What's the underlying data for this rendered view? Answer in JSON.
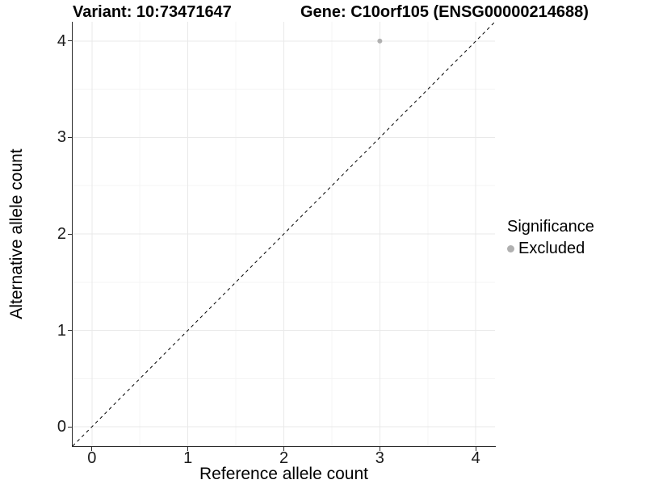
{
  "titles": {
    "variant": "Variant: 10:73471647",
    "gene": "Gene: C10orf105 (ENSG00000214688)"
  },
  "chart_data": {
    "type": "scatter",
    "xlabel": "Reference allele count",
    "ylabel": "Alternative allele count",
    "xlim": [
      -0.2,
      4.2
    ],
    "ylim": [
      -0.2,
      4.2
    ],
    "x_ticks": [
      0,
      1,
      2,
      3,
      4
    ],
    "y_ticks": [
      0,
      1,
      2,
      3,
      4
    ],
    "grid": {
      "major": true,
      "minor": true
    },
    "points": [
      {
        "x": 3,
        "y": 4,
        "significance": "Excluded",
        "color": "#b0b0b0"
      }
    ],
    "identity_line": {
      "slope": 1,
      "intercept": 0,
      "style": "dashed",
      "color": "#000000"
    },
    "legend": {
      "title": "Significance",
      "position": "right",
      "entries": [
        {
          "label": "Excluded",
          "color": "#b0b0b0"
        }
      ]
    }
  },
  "colors": {
    "axis_line": "#2b2b2b",
    "grid_major": "#e9e9e9",
    "grid_minor": "#f4f4f4",
    "background": "#ffffff"
  }
}
